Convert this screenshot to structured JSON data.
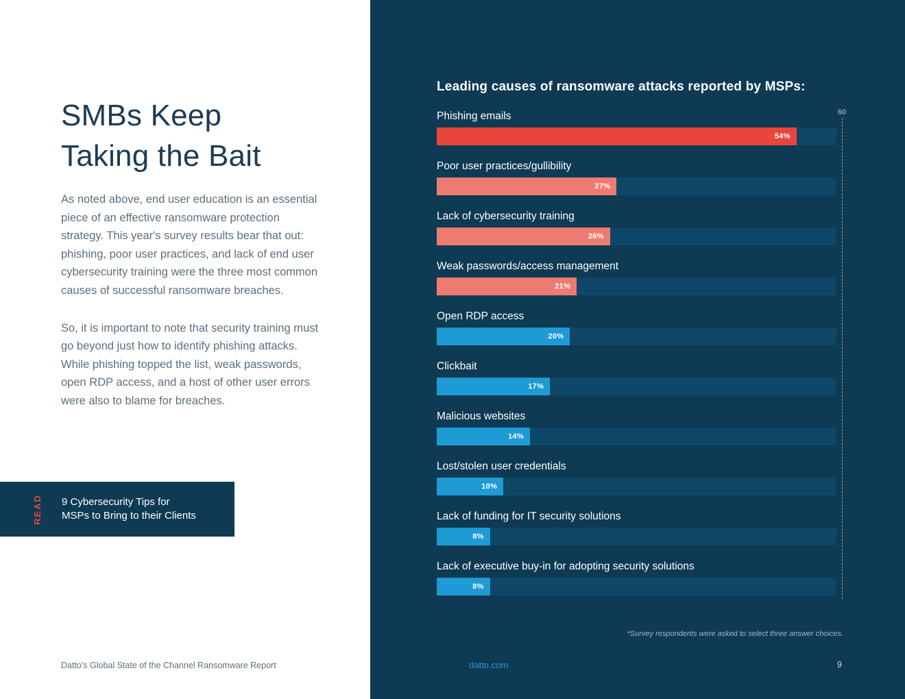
{
  "left": {
    "title_lines": [
      "SMBs Keep",
      "Taking the Bait"
    ],
    "paragraph1": "As noted above, end user education is an essential piece of an effective ransomware protection strategy. This year's survey results bear that out: phishing, poor user practices, and lack of end user cybersecurity training were the three most common causes of successful ransomware breaches.",
    "paragraph2": "So, it is important to note that security training must go beyond just how to identify phishing attacks. While phishing topped the list, weak passwords, open RDP access, and a host of other user errors were also to blame for breaches.",
    "read_label": "READ",
    "read_text_lines": [
      "9 Cybersecurity Tips for",
      "MSPs to Bring to their Clients"
    ],
    "footer": "Datto's Global State of the Channel Ransomware Report"
  },
  "right": {
    "chart_title": "Leading causes of ransomware attacks reported by MSPs:",
    "axis_max_label": "60",
    "footnote": "*Survey respondents were asked to select three answer choices.",
    "footer_link": "datto.com",
    "page_number": "9"
  },
  "chart_data": {
    "type": "bar",
    "orientation": "horizontal",
    "title": "Leading causes of ransomware attacks reported by MSPs:",
    "categories": [
      "Phishing emails",
      "Poor user practices/gullibility",
      "Lack of cybersecurity training",
      "Weak passwords/access management",
      "Open RDP access",
      "Clickbait",
      "Malicious websites",
      "Lost/stolen user credentials",
      "Lack of funding for IT security solutions",
      "Lack of executive buy-in for adopting security solutions"
    ],
    "values": [
      54,
      27,
      26,
      21,
      20,
      17,
      14,
      10,
      8,
      8
    ],
    "value_labels": [
      "54%",
      "27%",
      "26%",
      "21%",
      "20%",
      "17%",
      "14%",
      "10%",
      "8%",
      "8%"
    ],
    "xlim": [
      0,
      60
    ],
    "grid": "single dashed max line at 60",
    "legend": "none",
    "bar_colors": [
      "#e8463c",
      "#ee7b71",
      "#ee7b71",
      "#ee7b71",
      "#1e9bd4",
      "#1e9bd4",
      "#1e9bd4",
      "#1e9bd4",
      "#1e9bd4",
      "#1e9bd4"
    ],
    "track_color": "#0f4768",
    "footnote": "*Survey respondents were asked to select three answer choices."
  },
  "colors": {
    "navy": "#0e3a53",
    "track": "#0f4768",
    "red": "#e8463c",
    "salmon": "#ee7b71",
    "blue": "#1e9bd4",
    "heading": "#1d3b53",
    "body-text": "#5d6f7e",
    "link": "#1e9bd4",
    "muted": "#8aa0af"
  }
}
